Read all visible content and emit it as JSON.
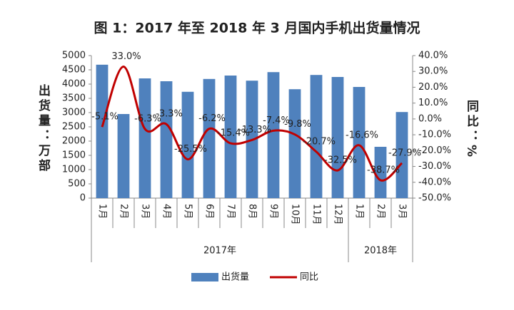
{
  "chart_data": {
    "type": "bar-line",
    "title": "图 1：2017 年至 2018 年 3 月国内手机出货量情况",
    "y_label": "出货量：万部",
    "y2_label": "同比：%",
    "categories": [
      "1月",
      "2月",
      "3月",
      "4月",
      "5月",
      "6月",
      "7月",
      "8月",
      "9月",
      "10月",
      "11月",
      "12月",
      "1月",
      "2月",
      "3月"
    ],
    "category_groups": [
      {
        "label": "2017年",
        "count": 12
      },
      {
        "label": "2018年",
        "count": 3
      }
    ],
    "series": [
      {
        "name": "出货量",
        "type": "bar",
        "color": "#4f81bd",
        "values": [
          4680,
          2950,
          4200,
          4100,
          3730,
          4180,
          4300,
          4120,
          4420,
          3820,
          4320,
          4250,
          3900,
          1800,
          3020
        ]
      },
      {
        "name": "同比",
        "type": "line",
        "axis": "y2",
        "color": "#c00000",
        "values": [
          -5.1,
          33.0,
          -6.3,
          -3.3,
          -25.5,
          -6.2,
          -15.4,
          -13.3,
          -7.4,
          -9.8,
          -20.7,
          -32.5,
          -16.6,
          -38.7,
          -27.9
        ],
        "value_labels": [
          "-5.1%",
          "33.0%",
          "-6.3%",
          "-3.3%",
          "-25.5%",
          "-6.2%",
          "-15.4%",
          "-13.3%",
          "-7.4%",
          "-9.8%",
          "-20.7%",
          "-32.5%",
          "-16.6%",
          "-38.7%",
          "-27.9%"
        ]
      }
    ],
    "ylim": [
      0,
      5000
    ],
    "yticks": [
      0,
      500,
      1000,
      1500,
      2000,
      2500,
      3000,
      3500,
      4000,
      4500,
      5000
    ],
    "y2lim": [
      -50,
      40
    ],
    "y2ticks": [
      {
        "value": -50,
        "label": "-50.0%"
      },
      {
        "value": -40,
        "label": "-40.0%"
      },
      {
        "value": -30,
        "label": "-30.0%"
      },
      {
        "value": -20,
        "label": "-20.0%"
      },
      {
        "value": -10,
        "label": "-10.0%"
      },
      {
        "value": 0,
        "label": "0.0%"
      },
      {
        "value": 10,
        "label": "10.0%"
      },
      {
        "value": 20,
        "label": "20.0%"
      },
      {
        "value": 30,
        "label": "30.0%"
      },
      {
        "value": 40,
        "label": "40.0%"
      }
    ],
    "legend": "bottom"
  }
}
